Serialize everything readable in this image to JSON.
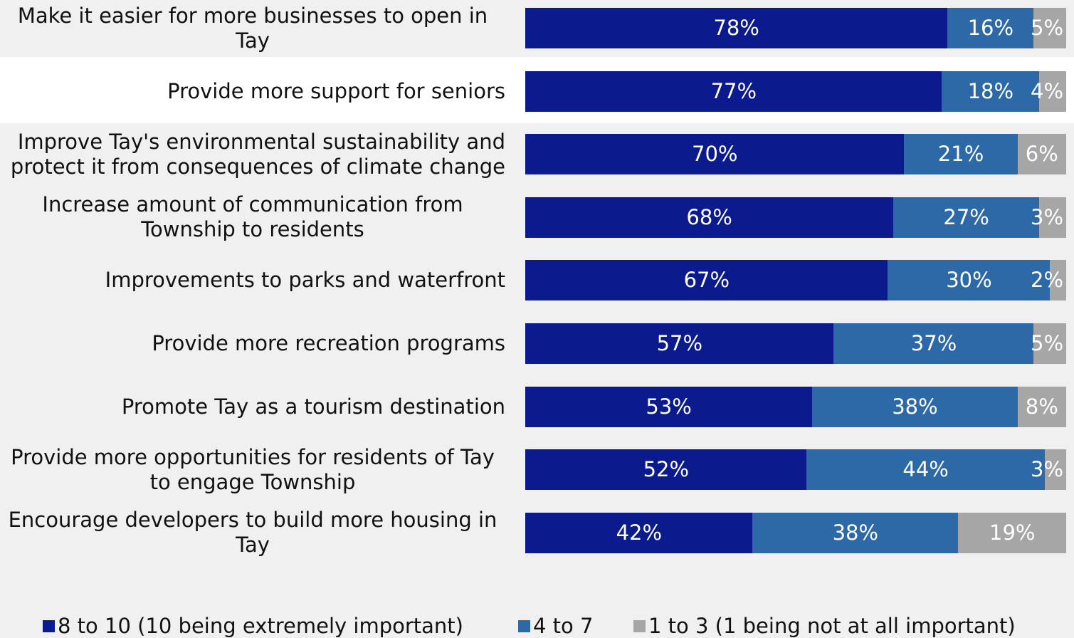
{
  "chart_data": {
    "type": "bar",
    "orientation": "horizontal",
    "stacked": true,
    "categories": [
      "Make it easier for more businesses to open in Tay",
      "Provide more support for seniors",
      "Improve Tay's environmental sustainability and protect it from consequences of climate change",
      "Increase amount of communication from Township to residents",
      "Improvements to parks and waterfront",
      "Provide more recreation programs",
      "Promote Tay as a tourism destination",
      "Provide more opportunities for residents of Tay to engage Township",
      "Encourage developers to build more housing in Tay"
    ],
    "series": [
      {
        "name": "8 to 10 (10 being extremely important)",
        "color": "#0b1a8c",
        "values": [
          78,
          77,
          70,
          68,
          67,
          57,
          53,
          52,
          42
        ]
      },
      {
        "name": "4 to 7",
        "color": "#2d69a6",
        "values": [
          16,
          18,
          21,
          27,
          30,
          37,
          38,
          44,
          38
        ]
      },
      {
        "name": "1 to 3 (1 being not at all important)",
        "color": "#a6a6a6",
        "values": [
          5,
          4,
          6,
          3,
          2,
          5,
          8,
          3,
          19
        ]
      }
    ],
    "data_labels": [
      [
        "78%",
        "16%",
        "5%"
      ],
      [
        "77%",
        "18%",
        "4%"
      ],
      [
        "70%",
        "21%",
        "6%"
      ],
      [
        "68%",
        "27%",
        "3%"
      ],
      [
        "67%",
        "30%",
        "2%"
      ],
      [
        "57%",
        "37%",
        "5%"
      ],
      [
        "53%",
        "38%",
        "8%"
      ],
      [
        "52%",
        "44%",
        "3%"
      ],
      [
        "42%",
        "38%",
        "19%"
      ]
    ],
    "xlim": [
      0,
      100
    ],
    "highlighted_row": 1,
    "highlight_color": "#ffffff",
    "legend_position": "bottom",
    "grid": false
  }
}
